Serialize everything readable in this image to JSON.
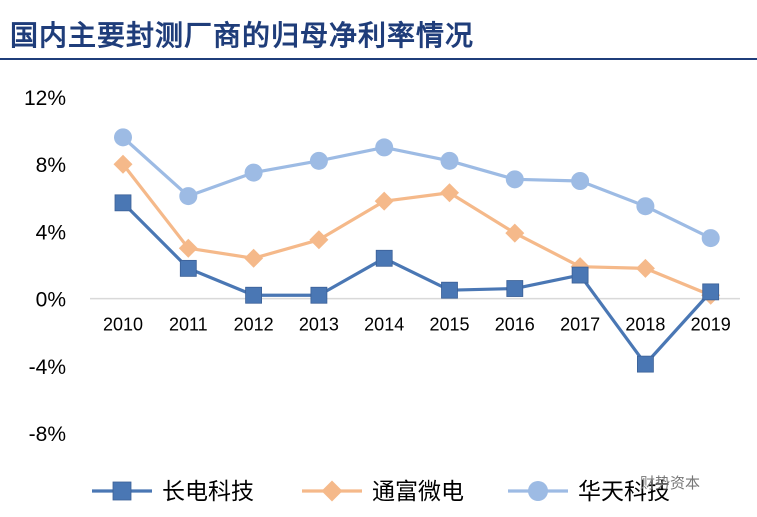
{
  "title": "国内主要封测厂商的归母净利率情况",
  "chart_data": {
    "type": "line",
    "title": "国内主要封测厂商的归母净利率情况",
    "x": [
      "2010",
      "2011",
      "2012",
      "2013",
      "2014",
      "2015",
      "2016",
      "2017",
      "2018",
      "2019"
    ],
    "ylim": [
      -8,
      12
    ],
    "yticks": [
      12,
      8,
      4,
      0,
      -4,
      -8
    ],
    "ytick_labels": [
      "12%",
      "8%",
      "4%",
      "0%",
      "-4%",
      "-8%"
    ],
    "grid": false,
    "legend_position": "bottom",
    "series": [
      {
        "name": "长电科技",
        "marker": "square",
        "color": "#4a77b4",
        "values": [
          5.7,
          1.8,
          0.2,
          0.2,
          2.4,
          0.5,
          0.6,
          1.4,
          -3.9,
          0.4
        ]
      },
      {
        "name": "通富微电",
        "marker": "diamond",
        "color": "#f5b98a",
        "values": [
          8.0,
          3.0,
          2.4,
          3.5,
          5.8,
          6.3,
          3.9,
          1.9,
          1.8,
          0.2
        ]
      },
      {
        "name": "华天科技",
        "marker": "circle",
        "color": "#9dbbe4",
        "values": [
          9.6,
          6.1,
          7.5,
          8.2,
          9.0,
          8.2,
          7.1,
          7.0,
          5.5,
          3.6
        ]
      }
    ]
  },
  "watermark": "财势资本"
}
